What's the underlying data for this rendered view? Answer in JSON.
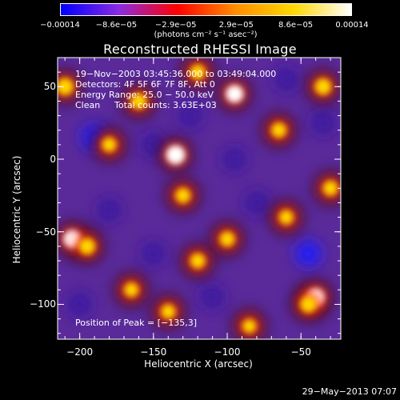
{
  "chart_data": {
    "type": "heatmap",
    "title": "Reconstructed RHESSI Image",
    "xlabel": "Heliocentric X (arcsec)",
    "ylabel": "Heliocentric Y (arcsec)",
    "xlim": [
      -215,
      -23
    ],
    "ylim": [
      -124,
      70
    ],
    "x_ticks": [
      "−200",
      "−150",
      "−100",
      "−50"
    ],
    "x_tick_values": [
      -200,
      -150,
      -100,
      -50
    ],
    "y_ticks": [
      "50",
      "0",
      "−50",
      "−100"
    ],
    "y_tick_values": [
      50,
      0,
      -50,
      -100
    ],
    "colorbar": {
      "ticks": [
        "−0.00014",
        "−8.6e−05",
        "−2.9e−05",
        "2.9e−05",
        "8.6e−05",
        "0.00014"
      ],
      "tick_values": [
        -0.00014,
        -8.6e-05,
        -2.9e-05,
        2.9e-05,
        8.6e-05,
        0.00014
      ],
      "range": [
        -0.00014,
        0.00014
      ],
      "unit": "(photons cm⁻² s⁻¹ asec⁻²)",
      "colormap": [
        "#0000ff",
        "#8a2be2",
        "#ff0000",
        "#ff8c00",
        "#ffd700",
        "#ffffff"
      ]
    },
    "annotations": {
      "time": "19−Nov−2003 03:45:36.000 to 03:49:04.000",
      "detectors": "Detectors: 4F 5F 6F 7F 8F, Att 0",
      "energy": "Energy Range: 25.0 − 50.0 keV",
      "clean_label": "Clean",
      "counts": "Total counts: 3.63E+03",
      "peak": "Position of Peak = [−135,3]"
    },
    "peaks": [
      {
        "x": -135,
        "y": 3,
        "value": 0.00014
      },
      {
        "x": -95,
        "y": 45,
        "value": 0.00012
      },
      {
        "x": -35,
        "y": 50,
        "value": 0.0001
      },
      {
        "x": -210,
        "y": 50,
        "value": 0.00011
      },
      {
        "x": -205,
        "y": -55,
        "value": 0.00012
      },
      {
        "x": -195,
        "y": -60,
        "value": 0.0001
      },
      {
        "x": -40,
        "y": -95,
        "value": 0.00012
      },
      {
        "x": -45,
        "y": -100,
        "value": 0.0001
      },
      {
        "x": -130,
        "y": -25,
        "value": 8e-05
      },
      {
        "x": -65,
        "y": 20,
        "value": 8e-05
      },
      {
        "x": -160,
        "y": 40,
        "value": 9e-05
      },
      {
        "x": -120,
        "y": -70,
        "value": 8e-05
      },
      {
        "x": -100,
        "y": -55,
        "value": 8e-05
      },
      {
        "x": -140,
        "y": -105,
        "value": 7e-05
      },
      {
        "x": -60,
        "y": -40,
        "value": 7e-05
      },
      {
        "x": -180,
        "y": 10,
        "value": 7e-05
      },
      {
        "x": -120,
        "y": 60,
        "value": 8e-05
      },
      {
        "x": -85,
        "y": -115,
        "value": 6e-05
      },
      {
        "x": -30,
        "y": -20,
        "value": 8e-05
      },
      {
        "x": -165,
        "y": -90,
        "value": 7e-05
      }
    ],
    "troughs": [
      {
        "x": -190,
        "y": 15,
        "value": -0.00012
      },
      {
        "x": -150,
        "y": 10,
        "value": -9e-05
      },
      {
        "x": -95,
        "y": 0,
        "value": -0.0001
      },
      {
        "x": -80,
        "y": -30,
        "value": -9e-05
      },
      {
        "x": -45,
        "y": -65,
        "value": -0.00011
      },
      {
        "x": -35,
        "y": 25,
        "value": -8e-05
      },
      {
        "x": -150,
        "y": -65,
        "value": -0.0001
      },
      {
        "x": -110,
        "y": -95,
        "value": -9e-05
      },
      {
        "x": -200,
        "y": -100,
        "value": -8e-05
      },
      {
        "x": -180,
        "y": -35,
        "value": -8e-05
      },
      {
        "x": -60,
        "y": 55,
        "value": -7e-05
      },
      {
        "x": -125,
        "y": 30,
        "value": -7e-05
      }
    ]
  },
  "timestamp": "29−May−2013 07:07"
}
